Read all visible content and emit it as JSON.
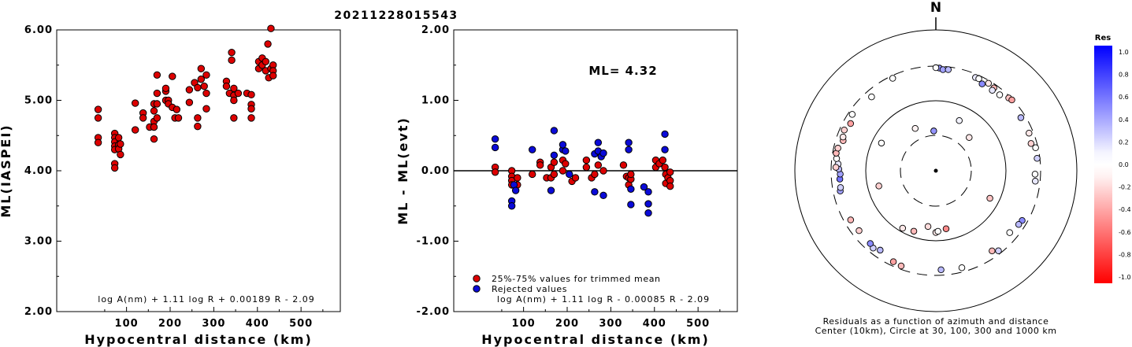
{
  "title": "20211228015543",
  "colors": {
    "red": "#dd0000",
    "blue": "#0a0ad8",
    "axis": "#000000"
  },
  "chart_data": [
    {
      "type": "scatter",
      "xlabel": "Hypocentral distance (km)",
      "ylabel": "ML(IASPEI)",
      "xlim": [
        -60,
        590
      ],
      "ylim": [
        2.0,
        6.0
      ],
      "x_ticks": [
        "100",
        "200",
        "300",
        "400",
        "500"
      ],
      "y_ticks": [
        "2.00",
        "3.00",
        "4.00",
        "5.00",
        "6.00"
      ],
      "annotation": "log A(nm) + 1.11 log R + 0.00189 R - 2.09",
      "series": [
        {
          "color": "#dd0000",
          "points": [
            [
              35,
              4.87
            ],
            [
              35,
              4.75
            ],
            [
              35,
              4.47
            ],
            [
              35,
              4.4
            ],
            [
              73,
              4.53
            ],
            [
              73,
              4.47
            ],
            [
              73,
              4.41
            ],
            [
              73,
              4.35
            ],
            [
              73,
              4.3
            ],
            [
              73,
              4.1
            ],
            [
              73,
              4.04
            ],
            [
              82,
              4.47
            ],
            [
              82,
              4.37
            ],
            [
              82,
              4.31
            ],
            [
              86,
              4.38
            ],
            [
              86,
              4.23
            ],
            [
              120,
              4.96
            ],
            [
              120,
              4.58
            ],
            [
              138,
              4.82
            ],
            [
              138,
              4.75
            ],
            [
              153,
              4.62
            ],
            [
              163,
              4.95
            ],
            [
              163,
              4.85
            ],
            [
              163,
              4.7
            ],
            [
              163,
              4.45
            ],
            [
              163,
              4.62
            ],
            [
              170,
              5.36
            ],
            [
              170,
              5.1
            ],
            [
              170,
              4.95
            ],
            [
              170,
              4.75
            ],
            [
              190,
              5.0
            ],
            [
              190,
              5.13
            ],
            [
              190,
              5.17
            ],
            [
              196,
              5.0
            ],
            [
              196,
              4.95
            ],
            [
              205,
              5.34
            ],
            [
              205,
              4.9
            ],
            [
              211,
              4.75
            ],
            [
              215,
              4.87
            ],
            [
              219,
              4.75
            ],
            [
              244,
              5.15
            ],
            [
              244,
              4.97
            ],
            [
              256,
              5.25
            ],
            [
              263,
              5.18
            ],
            [
              263,
              4.75
            ],
            [
              263,
              4.63
            ],
            [
              271,
              5.45
            ],
            [
              271,
              5.3
            ],
            [
              278,
              5.2
            ],
            [
              283,
              5.36
            ],
            [
              283,
              5.1
            ],
            [
              283,
              4.88
            ],
            [
              329,
              5.27
            ],
            [
              329,
              5.2
            ],
            [
              336,
              5.1
            ],
            [
              341,
              5.68
            ],
            [
              341,
              5.57
            ],
            [
              346,
              5.17
            ],
            [
              346,
              5.07
            ],
            [
              346,
              5.0
            ],
            [
              346,
              4.75
            ],
            [
              356,
              5.1
            ],
            [
              376,
              5.1
            ],
            [
              386,
              5.08
            ],
            [
              386,
              4.94
            ],
            [
              386,
              4.88
            ],
            [
              386,
              4.75
            ],
            [
              403,
              5.55
            ],
            [
              403,
              5.45
            ],
            [
              411,
              5.6
            ],
            [
              411,
              5.5
            ],
            [
              419,
              5.55
            ],
            [
              419,
              5.42
            ],
            [
              424,
              5.8
            ],
            [
              431,
              6.02
            ],
            [
              426,
              5.32
            ],
            [
              431,
              5.45
            ],
            [
              436,
              5.5
            ],
            [
              436,
              5.42
            ],
            [
              436,
              5.35
            ]
          ]
        }
      ]
    },
    {
      "type": "scatter",
      "xlabel": "Hypocentral distance (km)",
      "ylabel": "ML - ML(evt)",
      "xlim": [
        -60,
        590
      ],
      "ylim": [
        -2.0,
        2.0
      ],
      "x_ticks": [
        "100",
        "200",
        "300",
        "400",
        "500"
      ],
      "y_ticks": [
        "-2.00",
        "-1.00",
        "0.00",
        "1.00",
        "2.00"
      ],
      "hline": 0.0,
      "ml_label": "ML= 4.32",
      "annotation": "log A(nm) + 1.11 log R - 0.00085 R - 2.09",
      "series": [
        {
          "name": "25%-75% values for trimmed mean",
          "color": "#dd0000",
          "points": [
            [
              35,
              0.05
            ],
            [
              35,
              -0.02
            ],
            [
              73,
              0.0
            ],
            [
              73,
              -0.08
            ],
            [
              73,
              -0.14
            ],
            [
              73,
              -0.2
            ],
            [
              86,
              -0.1
            ],
            [
              86,
              -0.2
            ],
            [
              120,
              -0.05
            ],
            [
              138,
              0.12
            ],
            [
              138,
              0.08
            ],
            [
              153,
              -0.1
            ],
            [
              163,
              -0.1
            ],
            [
              163,
              0.05
            ],
            [
              170,
              -0.05
            ],
            [
              170,
              0.12
            ],
            [
              190,
              0.15
            ],
            [
              190,
              0.0
            ],
            [
              196,
              0.1
            ],
            [
              211,
              -0.15
            ],
            [
              219,
              -0.1
            ],
            [
              244,
              0.05
            ],
            [
              244,
              0.15
            ],
            [
              256,
              -0.1
            ],
            [
              263,
              -0.05
            ],
            [
              271,
              0.08
            ],
            [
              283,
              0.0
            ],
            [
              329,
              0.08
            ],
            [
              336,
              -0.08
            ],
            [
              341,
              -0.1
            ],
            [
              341,
              -0.2
            ],
            [
              346,
              -0.12
            ],
            [
              346,
              -0.05
            ],
            [
              403,
              0.05
            ],
            [
              403,
              0.15
            ],
            [
              411,
              0.1
            ],
            [
              419,
              0.15
            ],
            [
              424,
              0.05
            ],
            [
              426,
              -0.05
            ],
            [
              426,
              -0.18
            ],
            [
              431,
              -0.1
            ],
            [
              436,
              -0.02
            ],
            [
              436,
              -0.14
            ],
            [
              436,
              -0.22
            ]
          ]
        },
        {
          "name": "Rejected values",
          "color": "#0a0ad8",
          "points": [
            [
              35,
              0.45
            ],
            [
              35,
              0.33
            ],
            [
              73,
              -0.43
            ],
            [
              73,
              -0.5
            ],
            [
              78,
              -0.2
            ],
            [
              82,
              -0.28
            ],
            [
              120,
              0.3
            ],
            [
              163,
              -0.28
            ],
            [
              170,
              0.57
            ],
            [
              170,
              0.22
            ],
            [
              190,
              0.3
            ],
            [
              190,
              0.37
            ],
            [
              196,
              0.28
            ],
            [
              205,
              -0.05
            ],
            [
              263,
              -0.3
            ],
            [
              263,
              0.24
            ],
            [
              271,
              0.4
            ],
            [
              271,
              0.28
            ],
            [
              278,
              0.2
            ],
            [
              283,
              0.25
            ],
            [
              283,
              -0.35
            ],
            [
              341,
              0.4
            ],
            [
              341,
              0.3
            ],
            [
              346,
              -0.26
            ],
            [
              346,
              -0.48
            ],
            [
              376,
              -0.23
            ],
            [
              386,
              -0.3
            ],
            [
              386,
              -0.47
            ],
            [
              386,
              -0.6
            ],
            [
              424,
              0.52
            ],
            [
              424,
              0.3
            ]
          ]
        }
      ]
    },
    {
      "type": "polar-scatter",
      "north_label": "N",
      "caption_line1": "Residuals as a function of azimuth and distance",
      "caption_line2": "Center (10km), Circle at 30, 100, 300 and 1000 km",
      "colorbar_title": "Res",
      "colorbar_ticks": [
        "1.0",
        "0.8",
        "0.6",
        "0.4",
        "0.2",
        "0.0",
        "-0.2",
        "-0.4",
        "-0.6",
        "-0.8",
        "-1.0"
      ],
      "rings_km": [
        30,
        100,
        300,
        1000
      ],
      "points_res_azimuth_km": [
        [
          0.45,
          357,
          35
        ],
        [
          -0.05,
          334,
          45
        ],
        [
          0.05,
          25,
          60
        ],
        [
          -0.1,
          45,
          45
        ],
        [
          -0.15,
          188,
          62
        ],
        [
          -0.5,
          170,
          68
        ],
        [
          -0.1,
          180,
          75
        ],
        [
          0.0,
          178,
          72
        ],
        [
          -0.3,
          200,
          82
        ],
        [
          -0.1,
          210,
          88
        ],
        [
          -0.2,
          255,
          68
        ],
        [
          0.0,
          297,
          73
        ],
        [
          -0.25,
          117,
          72
        ],
        [
          0.45,
          2,
          282
        ],
        [
          0.4,
          4,
          270
        ],
        [
          0.3,
          7,
          275
        ],
        [
          0.1,
          23,
          270
        ],
        [
          0.0,
          25,
          272
        ],
        [
          -0.1,
          31,
          276
        ],
        [
          -0.3,
          35,
          268
        ],
        [
          -0.25,
          45,
          284
        ],
        [
          -0.4,
          47,
          292
        ],
        [
          0.0,
          40,
          252
        ],
        [
          0.1,
          35,
          245
        ],
        [
          0.3,
          58,
          260
        ],
        [
          0.5,
          28,
          246
        ],
        [
          -0.1,
          68,
          262
        ],
        [
          0.0,
          77,
          278
        ],
        [
          0.2,
          83,
          275
        ],
        [
          -0.2,
          74,
          250
        ],
        [
          0.0,
          92,
          252
        ],
        [
          0.1,
          96,
          258
        ],
        [
          0.5,
          120,
          255
        ],
        [
          0.3,
          123,
          248
        ],
        [
          0.0,
          130,
          230
        ],
        [
          -0.3,
          145,
          242
        ],
        [
          0.2,
          142,
          272
        ],
        [
          0.0,
          165,
          262
        ],
        [
          0.3,
          177,
          252
        ],
        [
          -0.3,
          200,
          270
        ],
        [
          -0.4,
          205,
          262
        ],
        [
          0.2,
          219,
          255
        ],
        [
          0.5,
          222,
          242
        ],
        [
          0.3,
          215,
          235
        ],
        [
          -0.2,
          232,
          238
        ],
        [
          -0.3,
          240,
          245
        ],
        [
          0.4,
          258,
          240
        ],
        [
          0.2,
          260,
          233
        ],
        [
          0.6,
          265,
          230
        ],
        [
          0.4,
          268,
          225
        ],
        [
          0.3,
          271,
          235
        ],
        [
          0.1,
          274,
          242
        ],
        [
          -0.2,
          272,
          258
        ],
        [
          0.0,
          277,
          258
        ],
        [
          -0.3,
          280,
          268
        ],
        [
          -0.2,
          283,
          262
        ],
        [
          -0.3,
          288,
          238
        ],
        [
          -0.1,
          290,
          248
        ],
        [
          -0.2,
          294,
          260
        ],
        [
          -0.4,
          299,
          238
        ],
        [
          0.0,
          304,
          265
        ],
        [
          0.0,
          335,
          276
        ],
        [
          0.0,
          319,
          242
        ],
        [
          0.0,
          0,
          285
        ]
      ]
    }
  ]
}
